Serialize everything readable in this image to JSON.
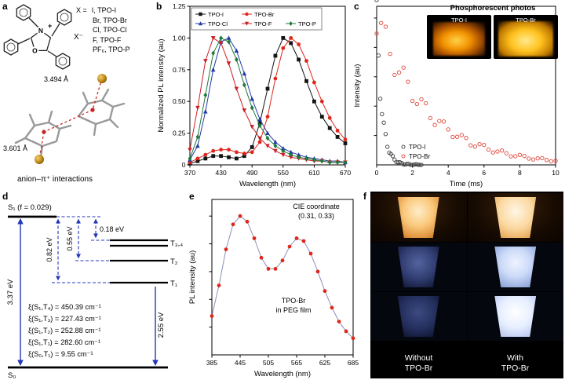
{
  "panels": {
    "a": {
      "label": "a",
      "x_eq": "X =",
      "anion_list": [
        "I, TPO-I",
        "Br, TPO-Br",
        "Cl, TPO-Cl",
        "F, TPO-F",
        "PF₆, TPO-P"
      ],
      "atom_labels": {
        "n": "N",
        "o": "O",
        "charge": "+",
        "counter_ion": "X⁻"
      },
      "distance_top": "3.494 Å",
      "distance_bottom": "3.601 Å",
      "caption": "anion–π⁺ interactions"
    },
    "b": {
      "label": "b"
    },
    "c": {
      "label": "c",
      "inset_title": "Phosphorescent photos",
      "inset_photo_labels": [
        "TPO-I",
        "TPO-Br"
      ]
    },
    "d": {
      "label": "d",
      "s1_label": "S₁ (f = 0.029)",
      "s0_label": "S₀",
      "t34_label": "T₃,₄",
      "t2_label": "T₂",
      "t1_label": "T₁",
      "gap_s1_t1": "0.82 eV",
      "gap_s1_t2": "0.55 eV",
      "gap_s1_t34": "0.18 eV",
      "absorption_energy": "3.37 eV",
      "phosphorescence_energy": "2.55 eV",
      "soc_values": [
        "ξ(S₁,T₄) = 450.39 cm⁻¹",
        "ξ(S₁,T₃) = 227.43 cm⁻¹",
        "ξ(S₁,T₂) = 252.88 cm⁻¹",
        "ξ(S₁,T₁) = 282.60 cm⁻¹",
        "ξ(S₀,T₁) = 9.55 cm⁻¹"
      ]
    },
    "e": {
      "label": "e",
      "annotation_cie": "CIE coordinate\n(0.31, 0.33)",
      "annotation_sample": "TPO-Br\nin PEG film"
    },
    "f": {
      "label": "f",
      "left_label": "Without\nTPO-Br",
      "right_label": "With\nTPO-Br"
    }
  },
  "chart_data": [
    {
      "id": "b",
      "type": "line",
      "xlabel": "Wavelength (nm)",
      "ylabel": "Normalized PL intensity (au)",
      "xlim": [
        370,
        670
      ],
      "ylim": [
        0,
        1.25
      ],
      "xticks": [
        370,
        430,
        490,
        550,
        610,
        670
      ],
      "yticks": [
        0,
        0.25,
        0.5,
        0.75,
        1,
        1.25
      ],
      "ytick_labels": [
        "0",
        "0.25",
        "0.50",
        "0.75",
        "1.00",
        "1.25"
      ],
      "legend_position": "top-left-box",
      "x": [
        370,
        385,
        400,
        415,
        430,
        445,
        460,
        475,
        490,
        505,
        520,
        535,
        550,
        565,
        580,
        595,
        610,
        625,
        640,
        655,
        670
      ],
      "series": [
        {
          "name": "TPO-I",
          "color": "#141414",
          "marker": "square",
          "values": [
            0.01,
            0.03,
            0.05,
            0.07,
            0.07,
            0.06,
            0.05,
            0.07,
            0.14,
            0.33,
            0.6,
            0.86,
            1.0,
            0.96,
            0.83,
            0.66,
            0.5,
            0.38,
            0.29,
            0.22,
            0.17
          ]
        },
        {
          "name": "TPO-Br",
          "color": "#e0261b",
          "marker": "circle",
          "values": [
            0.02,
            0.05,
            0.08,
            0.11,
            0.12,
            0.12,
            0.1,
            0.09,
            0.1,
            0.18,
            0.38,
            0.68,
            0.92,
            1.0,
            0.95,
            0.82,
            0.65,
            0.5,
            0.37,
            0.27,
            0.2
          ]
        },
        {
          "name": "TPO-Cl",
          "color": "#2438a8",
          "marker": "triangle-up",
          "values": [
            0.04,
            0.15,
            0.42,
            0.75,
            0.97,
            1.0,
            0.9,
            0.72,
            0.52,
            0.36,
            0.25,
            0.18,
            0.13,
            0.1,
            0.08,
            0.06,
            0.05,
            0.04,
            0.03,
            0.03,
            0.02
          ]
        },
        {
          "name": "TPO-F",
          "color": "#cc2026",
          "marker": "triangle-down",
          "values": [
            0.12,
            0.45,
            0.82,
            1.0,
            0.96,
            0.8,
            0.6,
            0.43,
            0.3,
            0.21,
            0.15,
            0.11,
            0.08,
            0.06,
            0.05,
            0.04,
            0.03,
            0.03,
            0.02,
            0.02,
            0.02
          ]
        },
        {
          "name": "TPO-P",
          "color": "#1d7a3a",
          "marker": "diamond",
          "values": [
            0.05,
            0.22,
            0.55,
            0.88,
            1.0,
            0.97,
            0.83,
            0.63,
            0.45,
            0.31,
            0.21,
            0.15,
            0.11,
            0.08,
            0.06,
            0.05,
            0.04,
            0.03,
            0.02,
            0.02,
            0.02
          ]
        }
      ]
    },
    {
      "id": "c",
      "type": "scatter",
      "xlabel": "Time (ms)",
      "ylabel": "Intensity (au)",
      "xlim": [
        0,
        10
      ],
      "ylim": [
        0,
        1.08
      ],
      "xticks": [
        0,
        2,
        4,
        6,
        8,
        10
      ],
      "yticks": [
        0.2,
        0.4,
        0.6,
        0.8,
        1.0
      ],
      "ytick_labels": [],
      "legend_position": "inside-bottom-left",
      "series": [
        {
          "name": "TPO-I",
          "color": "#3c3c3c",
          "marker": "open-circle",
          "x": [
            0,
            0.1,
            0.2,
            0.3,
            0.4,
            0.5,
            0.6,
            0.7,
            0.8,
            0.9,
            1.0,
            1.1,
            1.2,
            1.3,
            1.4,
            1.5,
            1.6,
            1.7,
            1.8,
            1.9,
            2.0,
            2.1,
            2.2,
            2.3,
            2.4,
            2.5
          ],
          "values": [
            1.0,
            0.72,
            0.51,
            0.37,
            0.26,
            0.19,
            0.135,
            0.097,
            0.07,
            0.05,
            0.036,
            0.026,
            0.018,
            0.013,
            0.01,
            0.007,
            0.005,
            0.004,
            0.003,
            0.002,
            0.002,
            0.001,
            0.001,
            0.001,
            0.001,
            0.0
          ]
        },
        {
          "name": "TPO-Br",
          "color": "#df4538",
          "marker": "open-circle",
          "x": [
            0,
            0.25,
            0.5,
            0.75,
            1,
            1.25,
            1.5,
            1.75,
            2,
            2.25,
            2.5,
            2.75,
            3,
            3.25,
            3.5,
            3.75,
            4,
            4.25,
            4.5,
            4.75,
            5,
            5.25,
            5.5,
            5.75,
            6,
            6.25,
            6.5,
            6.75,
            7,
            7.25,
            7.5,
            7.75,
            8,
            8.25,
            8.5,
            8.75,
            9,
            9.25,
            9.5,
            9.75,
            10
          ],
          "values": [
            1.0,
            0.92,
            0.84,
            0.77,
            0.7,
            0.64,
            0.59,
            0.54,
            0.49,
            0.45,
            0.41,
            0.38,
            0.34,
            0.31,
            0.29,
            0.26,
            0.24,
            0.22,
            0.2,
            0.18,
            0.17,
            0.15,
            0.14,
            0.13,
            0.12,
            0.11,
            0.1,
            0.09,
            0.084,
            0.077,
            0.07,
            0.064,
            0.059,
            0.054,
            0.049,
            0.045,
            0.041,
            0.038,
            0.035,
            0.032,
            0.029
          ]
        }
      ]
    },
    {
      "id": "e",
      "type": "line",
      "xlabel": "Wavelength (nm)",
      "ylabel": "PL intensity (au)",
      "xlim": [
        385,
        685
      ],
      "ylim": [
        0,
        1.12
      ],
      "xticks": [
        385,
        445,
        505,
        565,
        625,
        685
      ],
      "yticks": [
        0.2,
        0.4,
        0.6,
        0.8,
        1.0
      ],
      "ytick_labels": [],
      "x": [
        385,
        400,
        415,
        430,
        445,
        460,
        475,
        490,
        505,
        520,
        535,
        550,
        565,
        580,
        595,
        610,
        625,
        640,
        655,
        670,
        685
      ],
      "series": [
        {
          "name": "TPO-Br in PEG film",
          "color": "#e0261b",
          "line_color": "#8892bb",
          "marker": "circle",
          "values": [
            0.28,
            0.5,
            0.76,
            0.94,
            1.0,
            0.96,
            0.84,
            0.7,
            0.62,
            0.62,
            0.68,
            0.78,
            0.84,
            0.82,
            0.73,
            0.6,
            0.46,
            0.34,
            0.24,
            0.17,
            0.12
          ]
        }
      ]
    }
  ]
}
